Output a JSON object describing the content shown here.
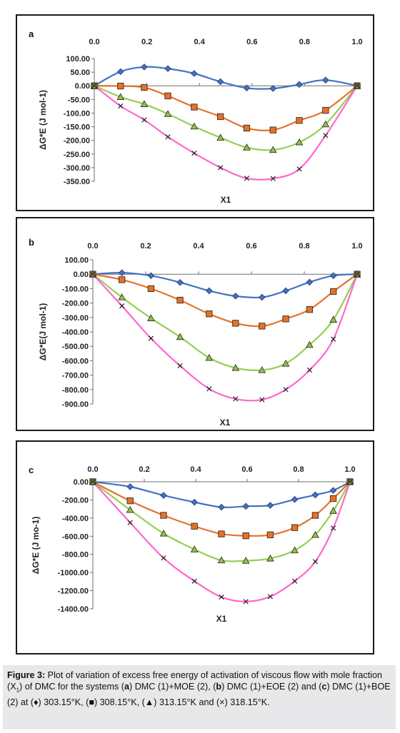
{
  "chart_data": [
    {
      "type": "line",
      "panel_label": "a",
      "ylabel": "ΔG*E (J mol-1)",
      "xlabel": "X1",
      "xlim": [
        0,
        1.0
      ],
      "ylim": [
        -350,
        100
      ],
      "x_ticks": [
        "0.0",
        "0.2",
        "0.4",
        "0.6",
        "0.8",
        "1.0"
      ],
      "y_ticks": [
        "100.00",
        "50.00",
        "0.00",
        "-50.00",
        "-100.00",
        "-150.00",
        "-200.00",
        "-250.00",
        "-300.00",
        "-350.00"
      ],
      "grid": false,
      "series": [
        {
          "marker": "diamond",
          "line_color": "#4472c4",
          "marker_color": "#4472c4",
          "points": [
            [
              0,
              0
            ],
            [
              0.1,
              52
            ],
            [
              0.19,
              69
            ],
            [
              0.28,
              63
            ],
            [
              0.38,
              45
            ],
            [
              0.48,
              15
            ],
            [
              0.58,
              -8
            ],
            [
              0.68,
              -10
            ],
            [
              0.78,
              5
            ],
            [
              0.88,
              21
            ],
            [
              1.0,
              0
            ]
          ]
        },
        {
          "marker": "square",
          "line_color": "#e3732c",
          "marker_color": "#e3732c",
          "points": [
            [
              0,
              0
            ],
            [
              0.1,
              -1
            ],
            [
              0.19,
              -6
            ],
            [
              0.28,
              -37
            ],
            [
              0.38,
              -78
            ],
            [
              0.48,
              -113
            ],
            [
              0.58,
              -155
            ],
            [
              0.68,
              -162
            ],
            [
              0.78,
              -127
            ],
            [
              0.88,
              -90
            ],
            [
              1.0,
              0
            ]
          ]
        },
        {
          "marker": "triangle",
          "line_color": "#92d050",
          "marker_color": "#9bbb59",
          "points": [
            [
              0,
              0
            ],
            [
              0.1,
              -41
            ],
            [
              0.19,
              -67
            ],
            [
              0.28,
              -103
            ],
            [
              0.38,
              -149
            ],
            [
              0.48,
              -190
            ],
            [
              0.58,
              -226
            ],
            [
              0.68,
              -235
            ],
            [
              0.78,
              -207
            ],
            [
              0.88,
              -141
            ],
            [
              1.0,
              0
            ]
          ]
        },
        {
          "marker": "cross",
          "line_color": "#ff66cc",
          "marker_color": "#222222",
          "points": [
            [
              0,
              0
            ],
            [
              0.1,
              -74
            ],
            [
              0.19,
              -125
            ],
            [
              0.28,
              -187
            ],
            [
              0.38,
              -247
            ],
            [
              0.48,
              -300
            ],
            [
              0.58,
              -339
            ],
            [
              0.68,
              -340
            ],
            [
              0.78,
              -305
            ],
            [
              0.88,
              -182
            ],
            [
              1.0,
              0
            ]
          ]
        }
      ]
    },
    {
      "type": "line",
      "panel_label": "b",
      "ylabel": "ΔG*E(J mol-1)",
      "xlabel": "X1",
      "xlim": [
        0,
        1.0
      ],
      "ylim": [
        -900,
        100
      ],
      "x_ticks": [
        "0.0",
        "0.2",
        "0.4",
        "0.6",
        "0.8",
        "1.0"
      ],
      "y_ticks": [
        "100.00",
        "0.00",
        "-100.00",
        "-200.00",
        "-300.00",
        "-400.00",
        "-500.00",
        "-600.00",
        "-700.00",
        "-800.00",
        "-900.00"
      ],
      "grid": false,
      "series": [
        {
          "marker": "diamond",
          "line_color": "#4472c4",
          "marker_color": "#4472c4",
          "points": [
            [
              0,
              0
            ],
            [
              0.11,
              10
            ],
            [
              0.22,
              -10
            ],
            [
              0.33,
              -57
            ],
            [
              0.44,
              -115
            ],
            [
              0.54,
              -152
            ],
            [
              0.64,
              -160
            ],
            [
              0.73,
              -115
            ],
            [
              0.82,
              -55
            ],
            [
              0.91,
              -10
            ],
            [
              1.0,
              0
            ]
          ]
        },
        {
          "marker": "square",
          "line_color": "#e3732c",
          "marker_color": "#e3732c",
          "points": [
            [
              0,
              0
            ],
            [
              0.11,
              -38
            ],
            [
              0.22,
              -100
            ],
            [
              0.33,
              -180
            ],
            [
              0.44,
              -275
            ],
            [
              0.54,
              -340
            ],
            [
              0.64,
              -360
            ],
            [
              0.73,
              -310
            ],
            [
              0.82,
              -245
            ],
            [
              0.91,
              -120
            ],
            [
              1.0,
              0
            ]
          ]
        },
        {
          "marker": "triangle",
          "line_color": "#92d050",
          "marker_color": "#9bbb59",
          "points": [
            [
              0,
              0
            ],
            [
              0.11,
              -160
            ],
            [
              0.22,
              -305
            ],
            [
              0.33,
              -435
            ],
            [
              0.44,
              -580
            ],
            [
              0.54,
              -650
            ],
            [
              0.64,
              -665
            ],
            [
              0.73,
              -620
            ],
            [
              0.82,
              -490
            ],
            [
              0.91,
              -315
            ],
            [
              1.0,
              0
            ]
          ]
        },
        {
          "marker": "cross",
          "line_color": "#ff66cc",
          "marker_color": "#222222",
          "points": [
            [
              0,
              0
            ],
            [
              0.11,
              -220
            ],
            [
              0.22,
              -445
            ],
            [
              0.33,
              -635
            ],
            [
              0.44,
              -795
            ],
            [
              0.54,
              -865
            ],
            [
              0.64,
              -870
            ],
            [
              0.73,
              -800
            ],
            [
              0.82,
              -665
            ],
            [
              0.91,
              -450
            ],
            [
              1.0,
              0
            ]
          ]
        }
      ]
    },
    {
      "type": "line",
      "panel_label": "c",
      "ylabel": "ΔG*E (J mo-1)",
      "xlabel": "X1",
      "xlim": [
        0,
        1.0
      ],
      "ylim": [
        -1400,
        0
      ],
      "x_ticks": [
        "0.0",
        "0.2",
        "0.4",
        "0.6",
        "0.8",
        "1.0"
      ],
      "y_ticks": [
        "0.00",
        "-200.00",
        "-400.00",
        "-600.00",
        "-800.00",
        "-1000.00",
        "-1200.00",
        "-1400.00"
      ],
      "grid": false,
      "series": [
        {
          "marker": "diamond",
          "line_color": "#4472c4",
          "marker_color": "#4472c4",
          "points": [
            [
              0,
              0
            ],
            [
              0.145,
              -55
            ],
            [
              0.275,
              -150
            ],
            [
              0.395,
              -225
            ],
            [
              0.5,
              -280
            ],
            [
              0.595,
              -270
            ],
            [
              0.69,
              -260
            ],
            [
              0.785,
              -195
            ],
            [
              0.865,
              -145
            ],
            [
              0.935,
              -95
            ],
            [
              1.0,
              0
            ]
          ]
        },
        {
          "marker": "square",
          "line_color": "#e3732c",
          "marker_color": "#e3732c",
          "points": [
            [
              0,
              0
            ],
            [
              0.145,
              -210
            ],
            [
              0.275,
              -370
            ],
            [
              0.395,
              -490
            ],
            [
              0.5,
              -575
            ],
            [
              0.595,
              -595
            ],
            [
              0.69,
              -585
            ],
            [
              0.785,
              -505
            ],
            [
              0.865,
              -370
            ],
            [
              0.935,
              -185
            ],
            [
              1.0,
              0
            ]
          ]
        },
        {
          "marker": "triangle",
          "line_color": "#92d050",
          "marker_color": "#9bbb59",
          "points": [
            [
              0,
              0
            ],
            [
              0.145,
              -310
            ],
            [
              0.275,
              -570
            ],
            [
              0.395,
              -745
            ],
            [
              0.5,
              -865
            ],
            [
              0.595,
              -870
            ],
            [
              0.69,
              -845
            ],
            [
              0.785,
              -755
            ],
            [
              0.865,
              -585
            ],
            [
              0.935,
              -320
            ],
            [
              1.0,
              0
            ]
          ]
        },
        {
          "marker": "cross",
          "line_color": "#ff66cc",
          "marker_color": "#222222",
          "points": [
            [
              0,
              0
            ],
            [
              0.145,
              -450
            ],
            [
              0.275,
              -840
            ],
            [
              0.395,
              -1095
            ],
            [
              0.5,
              -1270
            ],
            [
              0.595,
              -1320
            ],
            [
              0.69,
              -1265
            ],
            [
              0.785,
              -1095
            ],
            [
              0.865,
              -880
            ],
            [
              0.935,
              -510
            ],
            [
              1.0,
              0
            ]
          ]
        }
      ]
    }
  ],
  "caption": {
    "figure_label": "Figure 3:",
    "text_1": " Plot of variation of excess free energy of activation of viscous flow with mole fraction (X",
    "sub_1": "1",
    "text_2": ") of DMC for the systems (",
    "a": "a",
    "text_3": ") DMC (1)+MOE (2), (",
    "b": "b",
    "text_4": ") DMC (1)+EOE (2) and (",
    "c": "c",
    "text_5": ") DMC (1)+BOE (2) at (",
    "sym_1": "♦",
    "text_6": ") 303.15°K, (",
    "sym_2": "■",
    "text_7": ") 308.15°K, (",
    "sym_3": "▲",
    "text_8": ") 313.15°K and (×) 318.15°K."
  }
}
